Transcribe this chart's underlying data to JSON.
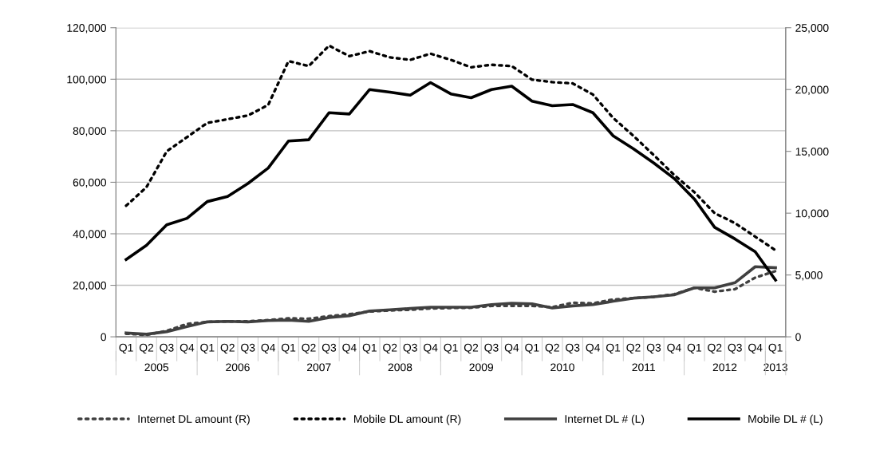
{
  "chart_data": {
    "type": "line",
    "categories": [
      "Q1",
      "Q2",
      "Q3",
      "Q4",
      "Q1",
      "Q2",
      "Q3",
      "Q4",
      "Q1",
      "Q2",
      "Q3",
      "Q4",
      "Q1",
      "Q2",
      "Q3",
      "Q4",
      "Q1",
      "Q2",
      "Q3",
      "Q4",
      "Q1",
      "Q2",
      "Q3",
      "Q4",
      "Q1",
      "Q2",
      "Q3",
      "Q4",
      "Q1",
      "Q2",
      "Q3",
      "Q4",
      "Q1"
    ],
    "annotations": [
      "2005",
      "2006",
      "2007",
      "2008",
      "2009",
      "2010",
      "2011",
      "2012",
      "2013"
    ],
    "ylim": [
      0,
      120000
    ],
    "yticks": [
      {
        "value": 0,
        "label": "0"
      },
      {
        "value": 20000,
        "label": "20,000"
      },
      {
        "value": 40000,
        "label": "40,000"
      },
      {
        "value": 60000,
        "label": "60,000"
      },
      {
        "value": 80000,
        "label": "80,000"
      },
      {
        "value": 100000,
        "label": "100,000"
      },
      {
        "value": 120000,
        "label": "120,000"
      }
    ],
    "y2lim": [
      0,
      25000
    ],
    "y2ticks": [
      {
        "value": 0,
        "label": "0"
      },
      {
        "value": 5000,
        "label": "5,000"
      },
      {
        "value": 10000,
        "label": "10,000"
      },
      {
        "value": 15000,
        "label": "15,000"
      },
      {
        "value": 20000,
        "label": "20,000"
      },
      {
        "value": 25000,
        "label": "25,000"
      }
    ],
    "grid": "y",
    "legend": "bottom",
    "marker": "none",
    "series": [
      {
        "name": "Internet DL amount (R)",
        "color": "#404040",
        "axis": "y2",
        "line_style": "dotted",
        "values": [
          250,
          150,
          480,
          1040,
          1210,
          1250,
          1250,
          1350,
          1500,
          1460,
          1670,
          1830,
          2040,
          2130,
          2190,
          2290,
          2330,
          2350,
          2500,
          2500,
          2500,
          2400,
          2750,
          2710,
          3020,
          3130,
          3230,
          3440,
          3960,
          3650,
          3850,
          4790,
          5310
        ]
      },
      {
        "name": "Mobile DL amount (R)",
        "color": "#000000",
        "axis": "y2",
        "line_style": "dotted",
        "values": [
          10600,
          12100,
          15000,
          16150,
          17300,
          17600,
          17900,
          18750,
          22300,
          21900,
          23550,
          22700,
          23100,
          22600,
          22400,
          22900,
          22400,
          21800,
          22000,
          21900,
          20800,
          20600,
          20500,
          19600,
          17700,
          16250,
          14700,
          13100,
          11700,
          10000,
          9200,
          8100,
          7000
        ]
      },
      {
        "name": "Internet DL # (L)",
        "color": "#404040",
        "axis": "y",
        "line_style": "solid",
        "values": [
          1500,
          1000,
          2000,
          4000,
          5800,
          6000,
          5800,
          6300,
          6500,
          6000,
          7500,
          8200,
          10000,
          10500,
          11000,
          11500,
          11500,
          11500,
          12500,
          13000,
          12800,
          11200,
          12000,
          12500,
          13800,
          15000,
          15500,
          16300,
          19000,
          19000,
          21000,
          27200,
          26800
        ]
      },
      {
        "name": "Mobile DL # (L)",
        "color": "#000000",
        "axis": "y",
        "line_style": "solid",
        "values": [
          30000,
          35500,
          43500,
          46000,
          52500,
          54500,
          59500,
          65500,
          76000,
          76500,
          87000,
          86500,
          96000,
          95000,
          93800,
          98700,
          94300,
          92800,
          96000,
          97300,
          91500,
          89700,
          90200,
          87000,
          78000,
          73000,
          67500,
          61500,
          53500,
          42500,
          38000,
          33000,
          22000
        ]
      }
    ]
  }
}
